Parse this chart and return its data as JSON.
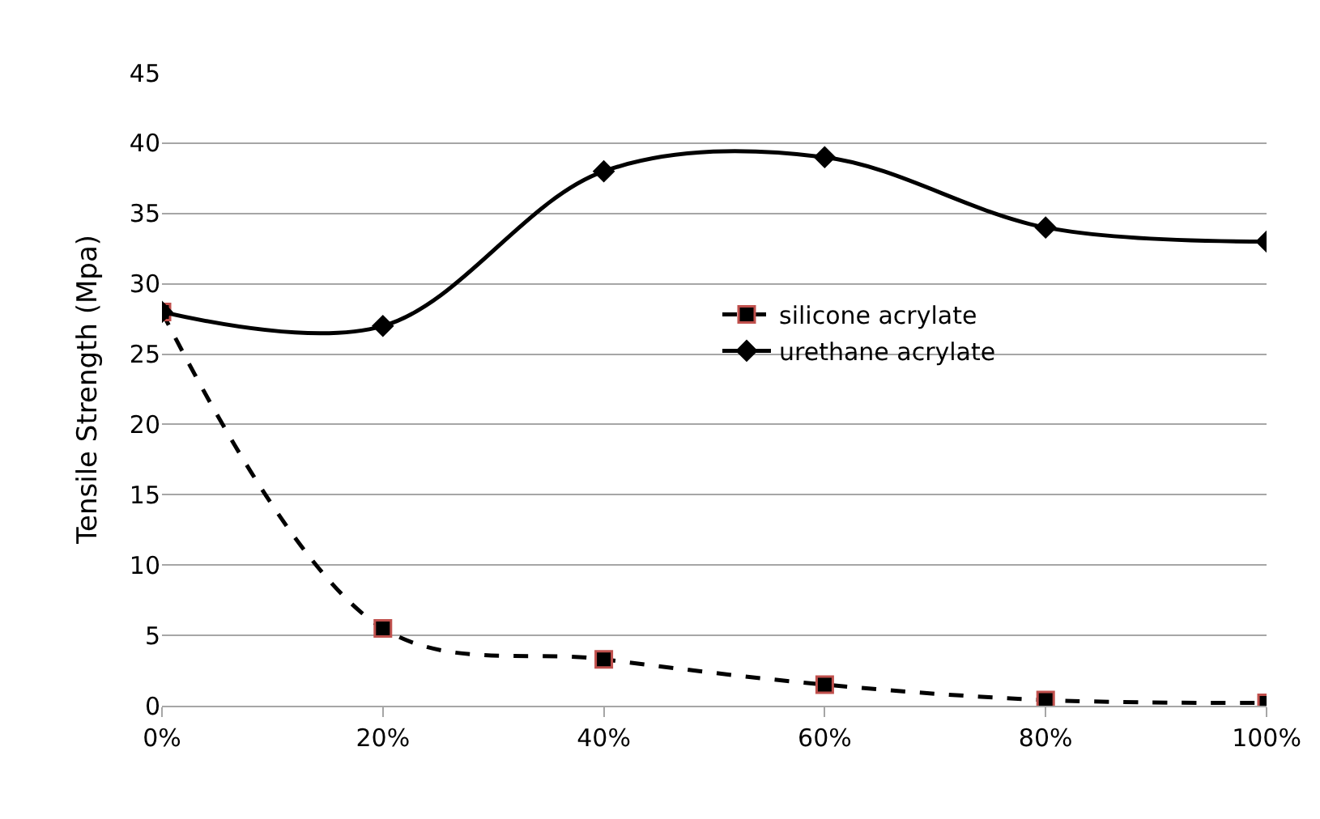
{
  "chart_data": {
    "type": "line",
    "ylabel": "Tensile Strength (Mpa)",
    "categories": [
      "0%",
      "20%",
      "40%",
      "60%",
      "80%",
      "100%"
    ],
    "series": [
      {
        "name": "silicone acrylate",
        "color": "#000000",
        "values": [
          28,
          5.5,
          3.3,
          1.5,
          0.4,
          0.2
        ],
        "marker": "square",
        "line_style": "dashed"
      },
      {
        "name": "urethane acrylate",
        "color": "#000000",
        "values": [
          28,
          27,
          38,
          39,
          34,
          33
        ],
        "marker": "diamond",
        "line_style": "solid"
      }
    ],
    "ylim": [
      0,
      45
    ],
    "yticks": [
      0,
      5,
      10,
      15,
      20,
      25,
      30,
      35,
      40,
      45
    ],
    "grid": "y",
    "legend": "center"
  }
}
